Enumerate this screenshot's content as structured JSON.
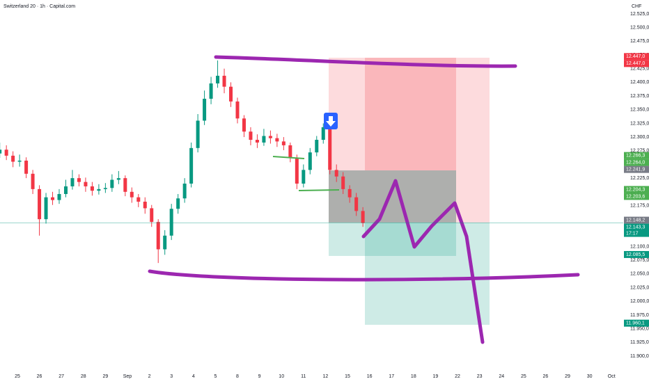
{
  "chart_data": {
    "type": "candlestick",
    "title": "Switzerland 20 · 1h · Capital.com",
    "currency": "CHF",
    "up_color": "#089981",
    "down_color": "#f23645",
    "xlim": [
      -0.79,
      27.53
    ],
    "ylim": [
      11878,
      12536
    ],
    "xticks": [
      {
        "value": 0,
        "label": "25"
      },
      {
        "value": 1,
        "label": "26"
      },
      {
        "value": 2,
        "label": "27"
      },
      {
        "value": 3,
        "label": "28"
      },
      {
        "value": 4,
        "label": "29"
      },
      {
        "value": 5,
        "label": "Sep"
      },
      {
        "value": 6,
        "label": "2"
      },
      {
        "value": 7,
        "label": "3"
      },
      {
        "value": 8,
        "label": "4"
      },
      {
        "value": 9,
        "label": "5"
      },
      {
        "value": 10,
        "label": "8"
      },
      {
        "value": 11,
        "label": "9"
      },
      {
        "value": 12,
        "label": "10"
      },
      {
        "value": 13,
        "label": "11"
      },
      {
        "value": 14,
        "label": "12"
      },
      {
        "value": 15,
        "label": "15"
      },
      {
        "value": 16,
        "label": "16"
      },
      {
        "value": 17,
        "label": "17"
      },
      {
        "value": 18,
        "label": "18"
      },
      {
        "value": 19,
        "label": "19"
      },
      {
        "value": 20,
        "label": "22"
      },
      {
        "value": 21,
        "label": "23"
      },
      {
        "value": 22,
        "label": "24"
      },
      {
        "value": 23,
        "label": "25"
      },
      {
        "value": 24,
        "label": "26"
      },
      {
        "value": 25,
        "label": "29"
      },
      {
        "value": 26,
        "label": "30"
      },
      {
        "value": 27,
        "label": "Oct"
      }
    ],
    "yticks": [
      {
        "value": 12525,
        "label": "12.525,0"
      },
      {
        "value": 12500,
        "label": "12.500,0"
      },
      {
        "value": 12475,
        "label": "12.475,0"
      },
      {
        "value": 12450,
        "label": "12.450,0"
      },
      {
        "value": 12425,
        "label": "12.425,0"
      },
      {
        "value": 12400,
        "label": "12.400,0"
      },
      {
        "value": 12375,
        "label": "12.375,0"
      },
      {
        "value": 12350,
        "label": "12.350,0"
      },
      {
        "value": 12325,
        "label": "12.325,0"
      },
      {
        "value": 12300,
        "label": "12.300,0"
      },
      {
        "value": 12275,
        "label": "12.275,0"
      },
      {
        "value": 12250,
        "label": "12.250,0"
      },
      {
        "value": 12225,
        "label": "12.225,0"
      },
      {
        "value": 12200,
        "label": "12.200,0"
      },
      {
        "value": 12175,
        "label": "12.175,0"
      },
      {
        "value": 12150,
        "label": "12.150,0"
      },
      {
        "value": 12125,
        "label": "12.125,0"
      },
      {
        "value": 12100,
        "label": "12.100,0"
      },
      {
        "value": 12075,
        "label": "12.075,0"
      },
      {
        "value": 12050,
        "label": "12.050,0"
      },
      {
        "value": 12025,
        "label": "12.025,0"
      },
      {
        "value": 12000,
        "label": "12.000,0"
      },
      {
        "value": 11975,
        "label": "11.975,0"
      },
      {
        "value": 11950,
        "label": "11.950,0"
      },
      {
        "value": 11925,
        "label": "11.925,0"
      },
      {
        "value": 11900,
        "label": "11.900,0"
      }
    ],
    "candles": {
      "x": [
        -0.8,
        -0.5,
        -0.2,
        0.1,
        0.4,
        0.7,
        1.0,
        1.3,
        1.6,
        1.9,
        2.2,
        2.5,
        2.8,
        3.1,
        3.4,
        3.7,
        4.0,
        4.3,
        4.6,
        4.9,
        5.2,
        5.5,
        5.8,
        6.1,
        6.4,
        6.7,
        7.0,
        7.3,
        7.6,
        7.9,
        8.2,
        8.5,
        8.8,
        9.1,
        9.4,
        9.7,
        10.0,
        10.3,
        10.6,
        10.9,
        11.2,
        11.5,
        11.8,
        12.1,
        12.4,
        12.7,
        13.0,
        13.3,
        13.6,
        13.9,
        14.2,
        14.5,
        14.8,
        15.1,
        15.4,
        15.7
      ],
      "open": [
        12270,
        12277,
        12266,
        12255,
        12257,
        12233,
        12205,
        12150,
        12190,
        12185,
        12196,
        12210,
        12225,
        12218,
        12210,
        12202,
        12205,
        12207,
        12222,
        12225,
        12200,
        12190,
        12182,
        12170,
        12145,
        12095,
        12120,
        12169,
        12188,
        12215,
        12280,
        12330,
        12370,
        12398,
        12412,
        12392,
        12365,
        12334,
        12310,
        12295,
        12290,
        12302,
        12298,
        12292,
        12285,
        12262,
        12215,
        12240,
        12272,
        12295,
        12318,
        12240,
        12228,
        12205,
        12190,
        12165
      ],
      "high": [
        12290,
        12285,
        12274,
        12268,
        12263,
        12240,
        12212,
        12198,
        12200,
        12205,
        12222,
        12240,
        12232,
        12226,
        12218,
        12214,
        12216,
        12232,
        12238,
        12230,
        12208,
        12196,
        12190,
        12176,
        12150,
        12130,
        12178,
        12196,
        12225,
        12290,
        12342,
        12385,
        12410,
        12440,
        12425,
        12400,
        12372,
        12340,
        12318,
        12305,
        12315,
        12312,
        12306,
        12300,
        12290,
        12268,
        12250,
        12280,
        12302,
        12325,
        12322,
        12250,
        12236,
        12212,
        12198,
        12172
      ],
      "low": [
        12262,
        12258,
        12245,
        12246,
        12225,
        12196,
        12120,
        12142,
        12176,
        12178,
        12190,
        12204,
        12210,
        12200,
        12193,
        12195,
        12198,
        12200,
        12214,
        12192,
        12180,
        12172,
        12160,
        12136,
        12070,
        12085,
        12112,
        12160,
        12180,
        12208,
        12272,
        12322,
        12360,
        12390,
        12380,
        12355,
        12325,
        12300,
        12285,
        12280,
        12284,
        12288,
        12282,
        12276,
        12254,
        12205,
        12208,
        12232,
        12265,
        12288,
        12232,
        12218,
        12196,
        12180,
        12156,
        12136
      ],
      "close": [
        12277,
        12266,
        12255,
        12257,
        12233,
        12205,
        12150,
        12190,
        12185,
        12196,
        12210,
        12225,
        12218,
        12210,
        12202,
        12205,
        12207,
        12222,
        12225,
        12200,
        12190,
        12182,
        12170,
        12145,
        12095,
        12120,
        12169,
        12188,
        12215,
        12280,
        12330,
        12370,
        12398,
        12412,
        12392,
        12365,
        12334,
        12310,
        12295,
        12290,
        12302,
        12298,
        12292,
        12285,
        12262,
        12215,
        12240,
        12272,
        12295,
        12318,
        12240,
        12228,
        12205,
        12190,
        12165,
        12143
      ]
    },
    "price_tags": [
      {
        "value": 12447.0,
        "label": "12.447,0",
        "color": "#f23645"
      },
      {
        "value": 12447.0,
        "label": "12.447,0",
        "color": "#f23645"
      },
      {
        "value": 12266.3,
        "label": "12.266,3",
        "color": "#4caf50"
      },
      {
        "value": 12264.0,
        "label": "12.264,0",
        "color": "#4caf50"
      },
      {
        "value": 12241.9,
        "label": "12.241,9",
        "color": "#787b86"
      },
      {
        "value": 12204.3,
        "label": "12.204,3",
        "color": "#4caf50"
      },
      {
        "value": 12203.6,
        "label": "12.203,6",
        "color": "#4caf50"
      },
      {
        "value": 12148.2,
        "label": "12.148,2",
        "color": "#787b86"
      },
      {
        "value": 12143.3,
        "label": "12.143,3",
        "color": "#089981",
        "countdown": "17:17"
      },
      {
        "value": 12085.5,
        "label": "12.085,5",
        "color": "#089981"
      },
      {
        "value": 11960.1,
        "label": "11.960,1",
        "color": "#089981"
      }
    ]
  }
}
